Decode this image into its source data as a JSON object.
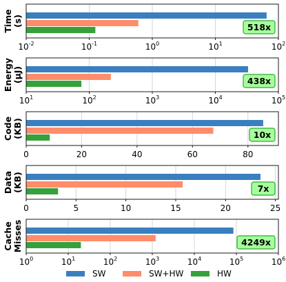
{
  "colors": {
    "SW": "#3a7fbf",
    "SW+HW": "#ff8c6a",
    "HW": "#36a03a"
  },
  "legend": [
    "SW",
    "SW+HW",
    "HW"
  ],
  "chart_data": [
    {
      "type": "bar",
      "orientation": "horizontal",
      "ylabel": [
        "Time",
        "(s)"
      ],
      "xscale": "log",
      "xlim_exp": [
        -2,
        2
      ],
      "ticks": [
        -2,
        -1,
        0,
        1,
        2
      ],
      "series": [
        {
          "name": "SW",
          "value": 65
        },
        {
          "name": "SW+HW",
          "value": 0.6
        },
        {
          "name": "HW",
          "value": 0.125
        }
      ],
      "badge": "518x"
    },
    {
      "type": "bar",
      "orientation": "horizontal",
      "ylabel": [
        "Energy",
        "(μJ)"
      ],
      "xscale": "log",
      "xlim_exp": [
        1,
        5
      ],
      "ticks": [
        1,
        2,
        3,
        4,
        5
      ],
      "series": [
        {
          "name": "SW",
          "value": 33000
        },
        {
          "name": "SW+HW",
          "value": 220
        },
        {
          "name": "HW",
          "value": 75
        }
      ],
      "badge": "438x"
    },
    {
      "type": "bar",
      "orientation": "horizontal",
      "ylabel": [
        "Code",
        "(KB)"
      ],
      "xscale": "linear",
      "xlim": [
        0,
        91
      ],
      "ticks": [
        0,
        20,
        40,
        60,
        80
      ],
      "series": [
        {
          "name": "SW",
          "value": 85.5
        },
        {
          "name": "SW+HW",
          "value": 67.5
        },
        {
          "name": "HW",
          "value": 8.5
        }
      ],
      "badge": "10x"
    },
    {
      "type": "bar",
      "orientation": "horizontal",
      "ylabel": [
        "Data",
        "(KB)"
      ],
      "xscale": "linear",
      "xlim": [
        0,
        25.3
      ],
      "ticks": [
        0,
        5,
        10,
        15,
        20,
        25
      ],
      "series": [
        {
          "name": "SW",
          "value": 23.5
        },
        {
          "name": "SW+HW",
          "value": 15.7
        },
        {
          "name": "HW",
          "value": 3.2
        }
      ],
      "badge": "7x"
    },
    {
      "type": "bar",
      "orientation": "horizontal",
      "ylabel": [
        "Cache",
        "Misses"
      ],
      "xscale": "log",
      "xlim_exp": [
        0,
        6
      ],
      "ticks": [
        0,
        1,
        2,
        3,
        4,
        5,
        6
      ],
      "series": [
        {
          "name": "SW",
          "value": 85000
        },
        {
          "name": "SW+HW",
          "value": 1200
        },
        {
          "name": "HW",
          "value": 20
        }
      ],
      "badge": "4249x"
    }
  ]
}
